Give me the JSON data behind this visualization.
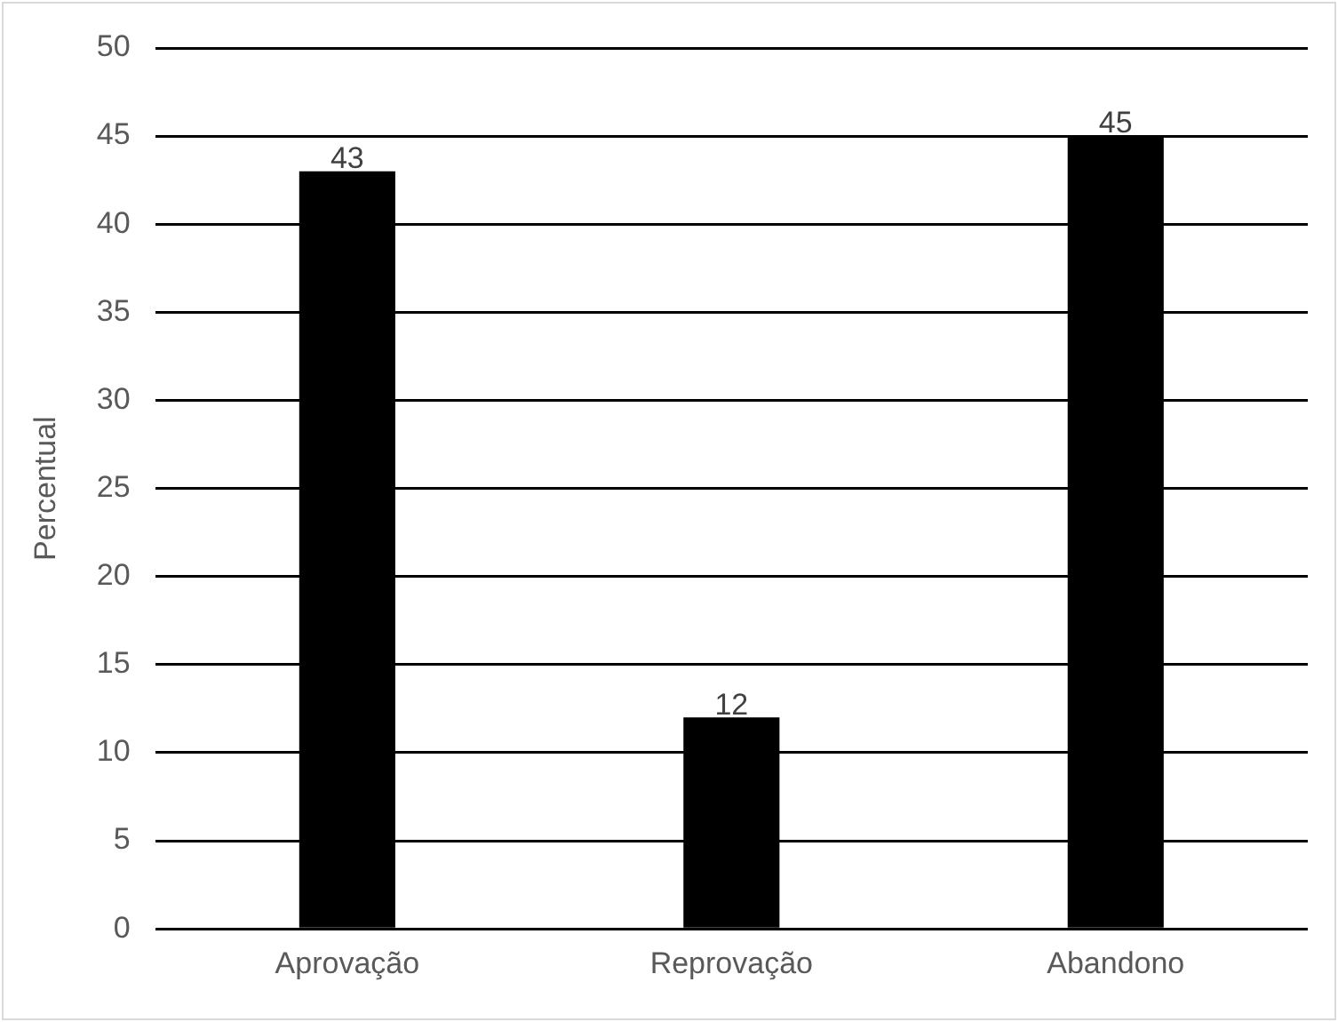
{
  "chart_data": {
    "type": "bar",
    "ylabel": "Percentual",
    "categories": [
      "Aprovação",
      "Reprovação",
      "Abandono"
    ],
    "values": [
      43,
      12,
      45
    ],
    "color": "#000000",
    "ylim": [
      0,
      50
    ],
    "yticks": [
      0,
      5,
      10,
      15,
      20,
      25,
      30,
      35,
      40,
      45,
      50
    ],
    "grid": "y",
    "data_labels": true
  }
}
